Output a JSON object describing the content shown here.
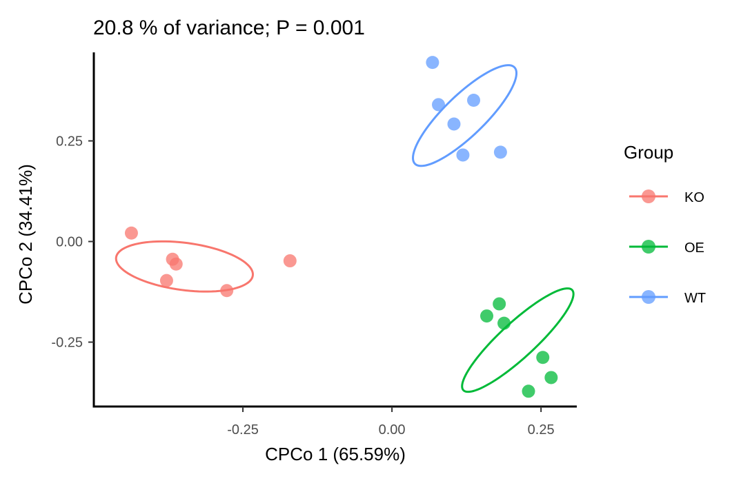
{
  "chart_data": {
    "type": "scatter",
    "title": "20.8 % of variance; P = 0.001",
    "xlabel": "CPCo 1 (65.59%)",
    "ylabel": "CPCo 2 (34.41%)",
    "xlim": [
      -0.5,
      0.31
    ],
    "ylim": [
      -0.41,
      0.47
    ],
    "x_ticks": [
      -0.25,
      0.0,
      0.25
    ],
    "x_tick_labels": [
      "-0.25",
      "0.00",
      "0.25"
    ],
    "y_ticks": [
      -0.25,
      0.0,
      0.25
    ],
    "y_tick_labels": [
      "-0.25",
      "0.00",
      "0.25"
    ],
    "grid": false,
    "legend": {
      "title": "Group",
      "position": "right"
    },
    "series": [
      {
        "name": "KO",
        "color": "#F8766D",
        "points": [
          {
            "x": -0.437,
            "y": 0.021
          },
          {
            "x": -0.368,
            "y": -0.044
          },
          {
            "x": -0.362,
            "y": -0.056
          },
          {
            "x": -0.378,
            "y": -0.097
          },
          {
            "x": -0.277,
            "y": -0.122
          },
          {
            "x": -0.171,
            "y": -0.048
          }
        ],
        "ellipse": {
          "cx": -0.348,
          "cy": -0.062,
          "rx": 0.117,
          "ry": 0.058,
          "angle_deg": -13
        }
      },
      {
        "name": "OE",
        "color": "#00BA38",
        "points": [
          {
            "x": 0.18,
            "y": -0.155
          },
          {
            "x": 0.159,
            "y": -0.185
          },
          {
            "x": 0.188,
            "y": -0.203
          },
          {
            "x": 0.253,
            "y": -0.288
          },
          {
            "x": 0.267,
            "y": -0.338
          },
          {
            "x": 0.229,
            "y": -0.372
          }
        ],
        "ellipse": {
          "cx": 0.211,
          "cy": -0.245,
          "rx": 0.155,
          "ry": 0.035,
          "angle_deg": 55
        }
      },
      {
        "name": "WT",
        "color": "#619CFF",
        "points": [
          {
            "x": 0.068,
            "y": 0.445
          },
          {
            "x": 0.078,
            "y": 0.34
          },
          {
            "x": 0.137,
            "y": 0.351
          },
          {
            "x": 0.104,
            "y": 0.292
          },
          {
            "x": 0.119,
            "y": 0.215
          },
          {
            "x": 0.182,
            "y": 0.222
          }
        ],
        "ellipse": {
          "cx": 0.122,
          "cy": 0.313,
          "rx": 0.147,
          "ry": 0.04,
          "angle_deg": 57
        }
      }
    ]
  }
}
